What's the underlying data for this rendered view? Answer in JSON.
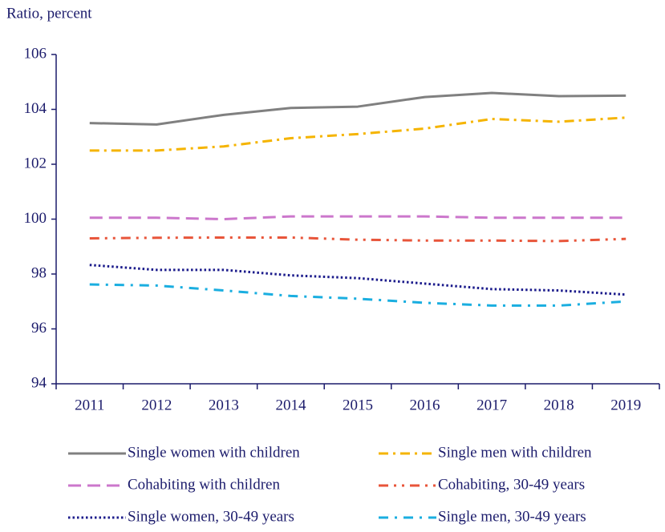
{
  "chart_data": {
    "type": "line",
    "y_axis_label": "Ratio, percent",
    "categories": [
      "2011",
      "2012",
      "2013",
      "2014",
      "2015",
      "2016",
      "2017",
      "2018",
      "2019"
    ],
    "ylim": [
      94,
      106
    ],
    "yticks": [
      94,
      96,
      98,
      100,
      102,
      104,
      106
    ],
    "legend": "bottom",
    "series": [
      {
        "name": "Single women with children",
        "color": "#808080",
        "values": [
          103.5,
          103.45,
          103.8,
          104.05,
          104.1,
          104.45,
          104.6,
          104.48,
          104.5
        ]
      },
      {
        "name": "Single men with children",
        "color": "#f5b400",
        "values": [
          102.5,
          102.5,
          102.65,
          102.95,
          103.1,
          103.3,
          103.65,
          103.55,
          103.7
        ]
      },
      {
        "name": "Cohabiting with children",
        "color": "#cc77cc",
        "values": [
          100.05,
          100.05,
          100.0,
          100.1,
          100.1,
          100.1,
          100.05,
          100.05,
          100.05
        ]
      },
      {
        "name": "Cohabiting, 30-49 years",
        "color": "#e8553a",
        "values": [
          99.3,
          99.32,
          99.33,
          99.33,
          99.25,
          99.22,
          99.22,
          99.2,
          99.28
        ]
      },
      {
        "name": "Single women, 30-49 years",
        "color": "#1c1c8c",
        "values": [
          98.33,
          98.15,
          98.15,
          97.95,
          97.85,
          97.65,
          97.45,
          97.4,
          97.25
        ]
      },
      {
        "name": "Single men, 30-49 years",
        "color": "#1aaee0",
        "values": [
          97.62,
          97.58,
          97.4,
          97.2,
          97.1,
          96.95,
          96.85,
          96.85,
          97.0
        ]
      }
    ]
  }
}
